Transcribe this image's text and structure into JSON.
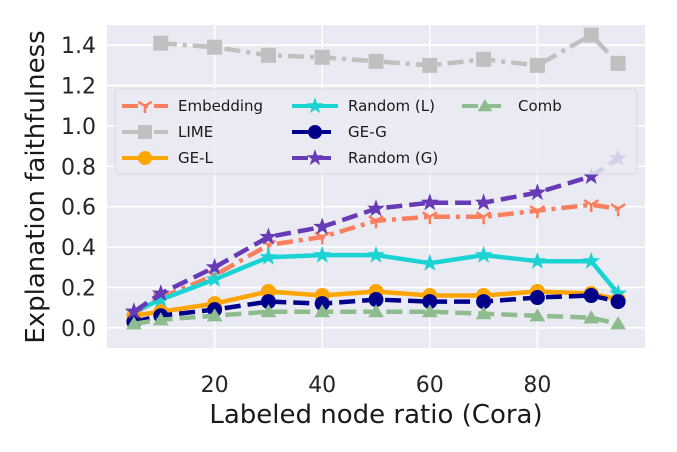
{
  "chart_data": {
    "type": "line",
    "xlabel": "Labeled node ratio (Cora)",
    "ylabel": "Explanation faithfulness",
    "xlim": [
      0,
      100
    ],
    "ylim": [
      -0.1,
      1.5
    ],
    "xticks": [
      20,
      40,
      60,
      80
    ],
    "yticks": [
      0.0,
      0.2,
      0.4,
      0.6,
      0.8,
      1.0,
      1.2,
      1.4
    ],
    "ytick_labels": [
      "0.0",
      "0.2",
      "0.4",
      "0.6",
      "0.8",
      "1.0",
      "1.2",
      "1.4"
    ],
    "grid": true,
    "background": "#eaeaf2",
    "legend_position": "upper center, inside plot, 3 columns",
    "x": [
      5,
      10,
      20,
      30,
      40,
      50,
      60,
      70,
      80,
      90,
      95
    ],
    "series": [
      {
        "name": "Embedding",
        "color": "#fa7f5e",
        "dash": "dashdot",
        "marker": "tri_down",
        "values": [
          0.07,
          0.15,
          0.26,
          0.41,
          0.45,
          0.53,
          0.55,
          0.55,
          0.58,
          0.61,
          0.59
        ]
      },
      {
        "name": "LIME",
        "color": "#c0c0c0",
        "dash": "dashdot",
        "marker": "square",
        "values": [
          null,
          1.41,
          1.39,
          1.35,
          1.34,
          1.32,
          1.3,
          1.33,
          1.3,
          1.45,
          1.31
        ]
      },
      {
        "name": "GE-L",
        "color": "#ffa500",
        "dash": "solid",
        "marker": "circle",
        "values": [
          0.06,
          0.08,
          0.12,
          0.18,
          0.16,
          0.18,
          0.16,
          0.16,
          0.18,
          0.17,
          0.14
        ]
      },
      {
        "name": "Random (L)",
        "color": "#1cd3d3",
        "dash": "solid",
        "marker": "star",
        "values": [
          0.08,
          0.14,
          0.24,
          0.35,
          0.36,
          0.36,
          0.32,
          0.36,
          0.33,
          0.33,
          0.17
        ]
      },
      {
        "name": "GE-G",
        "color": "#00008b",
        "dash": "dashed",
        "marker": "circle",
        "values": [
          0.03,
          0.06,
          0.09,
          0.13,
          0.12,
          0.14,
          0.13,
          0.13,
          0.15,
          0.16,
          0.13
        ]
      },
      {
        "name": "Random (G)",
        "color": "#673ab7",
        "dash": "dashed",
        "marker": "star",
        "values": [
          0.08,
          0.17,
          0.3,
          0.45,
          0.5,
          0.59,
          0.62,
          0.62,
          0.67,
          0.75,
          0.84
        ]
      },
      {
        "name": "Comb",
        "color": "#8fbc8f",
        "dash": "dashed",
        "marker": "triangle",
        "values": [
          0.02,
          0.04,
          0.06,
          0.08,
          0.08,
          0.08,
          0.08,
          0.07,
          0.06,
          0.05,
          0.02
        ]
      }
    ]
  }
}
